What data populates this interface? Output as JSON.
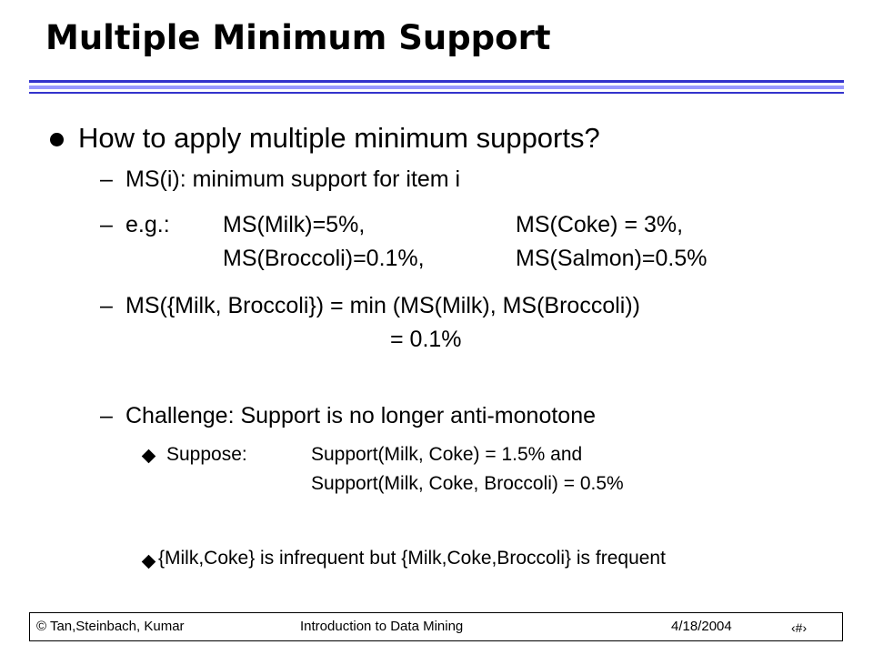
{
  "title": "Multiple Minimum Support",
  "question": "How to apply multiple minimum supports?",
  "dash": "–",
  "definition": "MS(i): minimum support for item i",
  "example": {
    "label": "e.g.:",
    "items": [
      "MS(Milk)=5%,",
      "MS(Coke) = 3%,",
      "MS(Broccoli)=0.1%,",
      "MS(Salmon)=0.5%"
    ]
  },
  "formula": {
    "line1": "MS({Milk, Broccoli}) = min (MS(Milk), MS(Broccoli))",
    "line2": "= 0.1%"
  },
  "challenge": "Challenge: Support is no longer anti-monotone",
  "suppose": {
    "label": "Suppose:",
    "lines": [
      "Support(Milk, Coke) = 1.5% and",
      "Support(Milk, Coke, Broccoli) = 0.5%"
    ]
  },
  "conclusion": "{Milk,Coke} is infrequent but {Milk,Coke,Broccoli} is frequent",
  "footer": {
    "authors": "© Tan,Steinbach, Kumar",
    "course": "Introduction to Data Mining",
    "date": "4/18/2004",
    "page_glyph": "‹#›"
  }
}
